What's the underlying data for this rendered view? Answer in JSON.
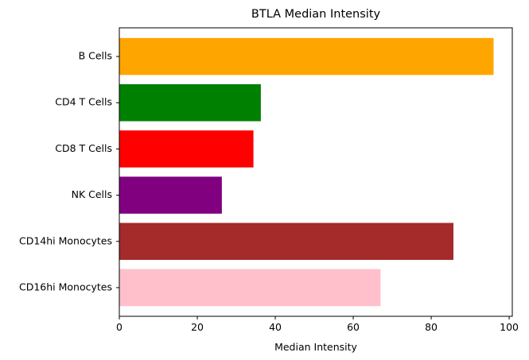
{
  "chart_data": {
    "type": "bar",
    "orientation": "horizontal",
    "title": "BTLA Median Intensity",
    "xlabel": "Median Intensity",
    "ylabel": "",
    "categories": [
      "B Cells",
      "CD4 T Cells",
      "CD8 T Cells",
      "NK Cells",
      "CD14hi Monocytes",
      "CD16hi Monocytes"
    ],
    "values": [
      96,
      36.3,
      34.4,
      26.3,
      85.7,
      67
    ],
    "colors": [
      "#ffa500",
      "#008000",
      "#ff0000",
      "#800080",
      "#a52a2a",
      "#ffc0cb"
    ],
    "xlim": [
      0,
      100.8
    ],
    "xticks": [
      0,
      20,
      40,
      60,
      80,
      100
    ],
    "grid": false,
    "legend": false
  }
}
